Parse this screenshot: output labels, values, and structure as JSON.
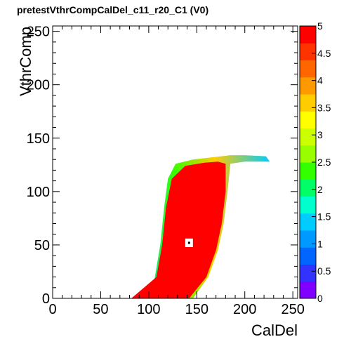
{
  "chart_data": {
    "type": "heatmap",
    "title": "pretestVthrCompCalDel_c11_r20_C1 (V0)",
    "xlabel": "CalDel",
    "ylabel": "VthrComp",
    "xlim": [
      0,
      255
    ],
    "ylim": [
      0,
      255
    ],
    "x_ticks": [
      "0",
      "50",
      "100",
      "150",
      "200",
      "250"
    ],
    "y_ticks": [
      "0",
      "50",
      "100",
      "150",
      "200",
      "250"
    ],
    "zlim": [
      0,
      5
    ],
    "z_ticks": [
      "0",
      "0.5",
      "1",
      "1.5",
      "2",
      "2.5",
      "3",
      "3.5",
      "4",
      "4.5",
      "5"
    ],
    "z_colors": [
      "#7f00ff",
      "#3333ff",
      "#0066ff",
      "#0099ff",
      "#00ccff",
      "#00ffcc",
      "#00ff66",
      "#33ff00",
      "#99ff00",
      "#ccff00",
      "#ffff00",
      "#ffcc00",
      "#ff9900",
      "#ff6600",
      "#ff3300",
      "#ff0000"
    ],
    "main_region": {
      "z": 5,
      "boundary": [
        [
          82,
          0
        ],
        [
          108,
          20
        ],
        [
          114,
          50
        ],
        [
          118,
          85
        ],
        [
          124,
          112
        ],
        [
          138,
          124
        ],
        [
          158,
          127
        ],
        [
          172,
          128
        ],
        [
          180,
          126
        ],
        [
          180,
          100
        ],
        [
          176,
          70
        ],
        [
          170,
          45
        ],
        [
          160,
          20
        ],
        [
          142,
          0
        ]
      ]
    },
    "halo_region": {
      "z_range": [
        1,
        4.5
      ],
      "boundary": [
        [
          82,
          0
        ],
        [
          106,
          18
        ],
        [
          112,
          50
        ],
        [
          116,
          85
        ],
        [
          120,
          112
        ],
        [
          128,
          126
        ],
        [
          146,
          130
        ],
        [
          165,
          132
        ],
        [
          185,
          134
        ],
        [
          200,
          134
        ],
        [
          222,
          133
        ],
        [
          226,
          128
        ],
        [
          200,
          128
        ],
        [
          185,
          126
        ],
        [
          182,
          100
        ],
        [
          178,
          70
        ],
        [
          172,
          45
        ],
        [
          162,
          20
        ],
        [
          146,
          0
        ]
      ]
    },
    "hole": {
      "x": 142,
      "y": 52,
      "size": 8
    }
  }
}
